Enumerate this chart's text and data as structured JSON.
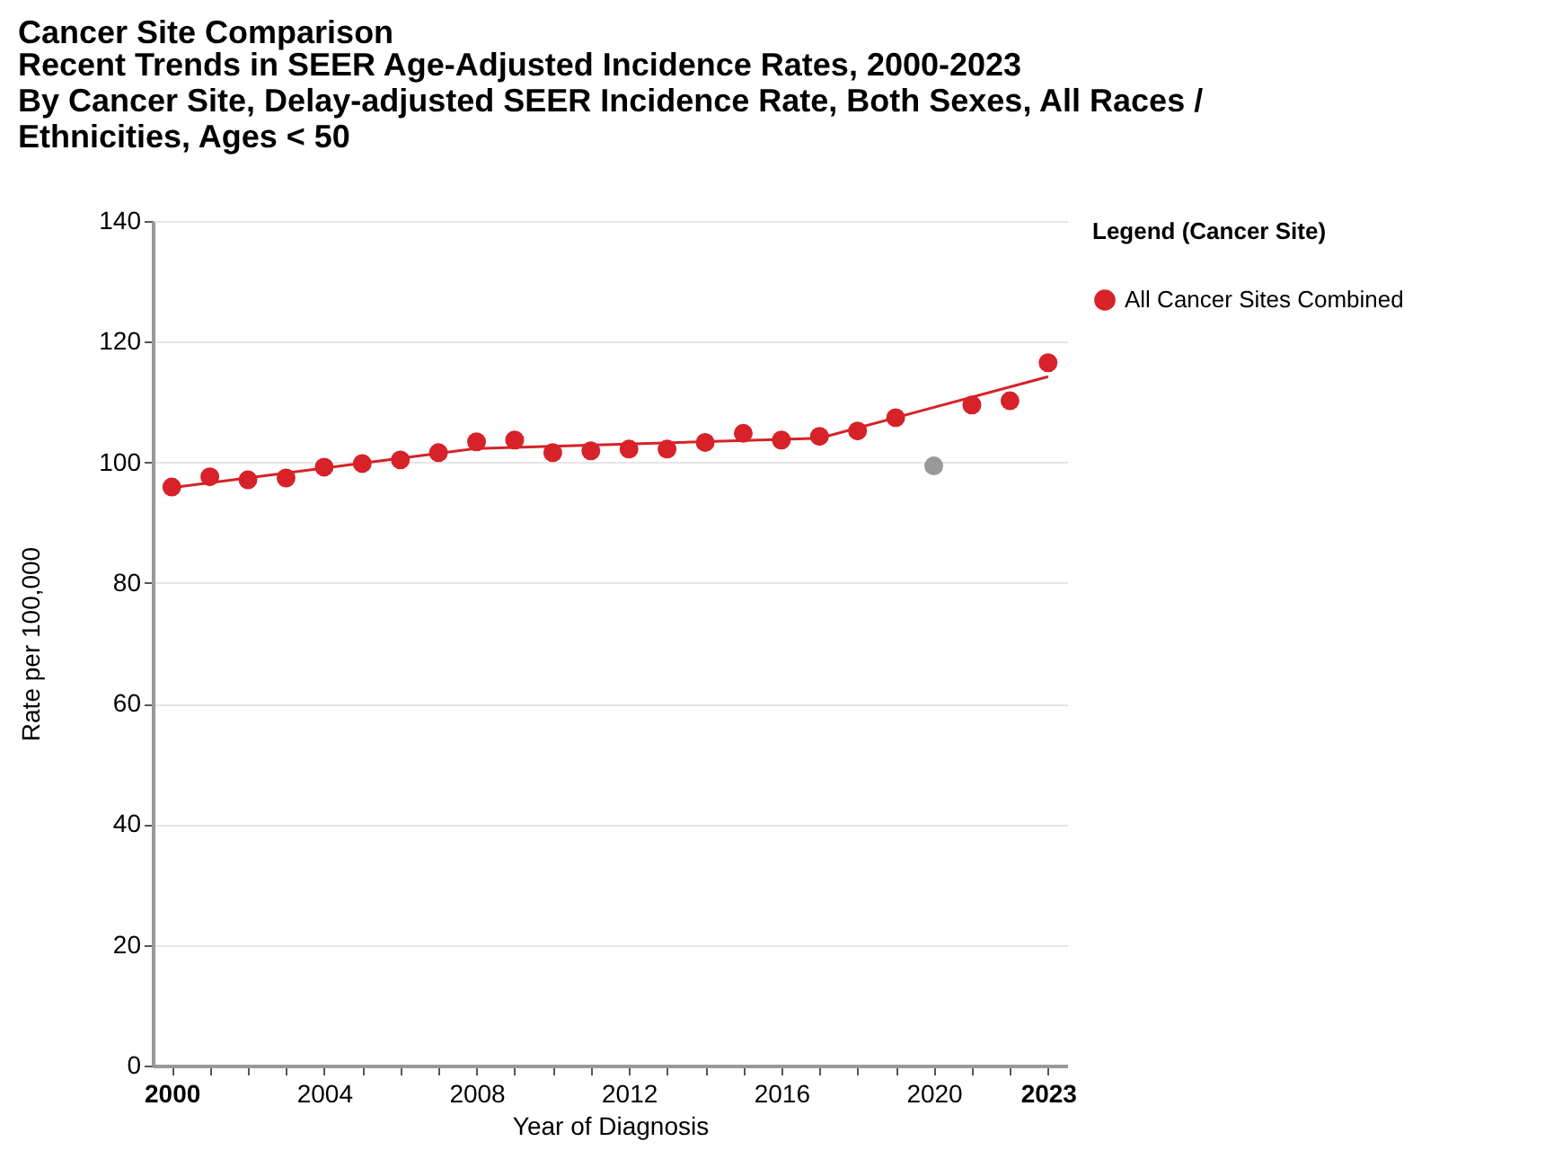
{
  "chart_data": {
    "type": "scatter",
    "title": "Cancer Site Comparison",
    "subtitle": "Recent Trends in SEER Age-Adjusted Incidence Rates, 2000-2023\nBy Cancer Site, Delay-adjusted SEER Incidence Rate, Both Sexes, All Races /\nEthnicities, Ages < 50",
    "xlabel": "Year of Diagnosis",
    "ylabel": "Rate per 100,000",
    "legend_title": "Legend (Cancer Site)",
    "legend": "top right",
    "grid": "y",
    "marker": "circle",
    "xlim": [
      1999.5,
      2023.5
    ],
    "xticks": [
      2000,
      {
        "value": 2001,
        "label": null
      },
      {
        "value": 2002,
        "label": null
      },
      {
        "value": 2003,
        "label": null
      },
      2004,
      {
        "value": 2005,
        "label": null
      },
      {
        "value": 2006,
        "label": null
      },
      {
        "value": 2007,
        "label": null
      },
      2008,
      {
        "value": 2009,
        "label": null
      },
      {
        "value": 2010,
        "label": null
      },
      {
        "value": 2011,
        "label": null
      },
      2012,
      {
        "value": 2013,
        "label": null
      },
      {
        "value": 2014,
        "label": null
      },
      {
        "value": 2015,
        "label": null
      },
      2016,
      {
        "value": 2017,
        "label": null
      },
      {
        "value": 2018,
        "label": null
      },
      {
        "value": 2019,
        "label": null
      },
      2020,
      {
        "value": 2021,
        "label": null
      },
      {
        "value": 2022,
        "label": null
      },
      2023
    ],
    "ylim": [
      0,
      140
    ],
    "yticks": [
      0,
      20,
      40,
      60,
      80,
      100,
      120,
      140
    ],
    "series": [
      {
        "name": "All Cancer Sites Combined",
        "color": "#d62228",
        "x": [
          2000,
          2001,
          2002,
          2003,
          2004,
          2005,
          2006,
          2007,
          2008,
          2009,
          2010,
          2011,
          2012,
          2013,
          2014,
          2015,
          2016,
          2017,
          2018,
          2019,
          2021,
          2022,
          2023
        ],
        "values": [
          95.9,
          97.6,
          97.1,
          97.4,
          99.2,
          99.8,
          100.4,
          101.6,
          103.4,
          103.7,
          101.6,
          101.9,
          102.2,
          102.2,
          103.3,
          104.8,
          103.7,
          104.3,
          105.2,
          107.4,
          109.5,
          110.2,
          116.5
        ]
      },
      {
        "color": "#999999",
        "x": [
          2020
        ],
        "values": [
          99.4
        ]
      },
      {
        "type": "line",
        "marker": "none",
        "color": "#d62228",
        "x": [
          2000,
          2008,
          2017,
          2023
        ],
        "values": [
          95.8,
          102.3,
          104.0,
          114.2
        ]
      }
    ]
  }
}
